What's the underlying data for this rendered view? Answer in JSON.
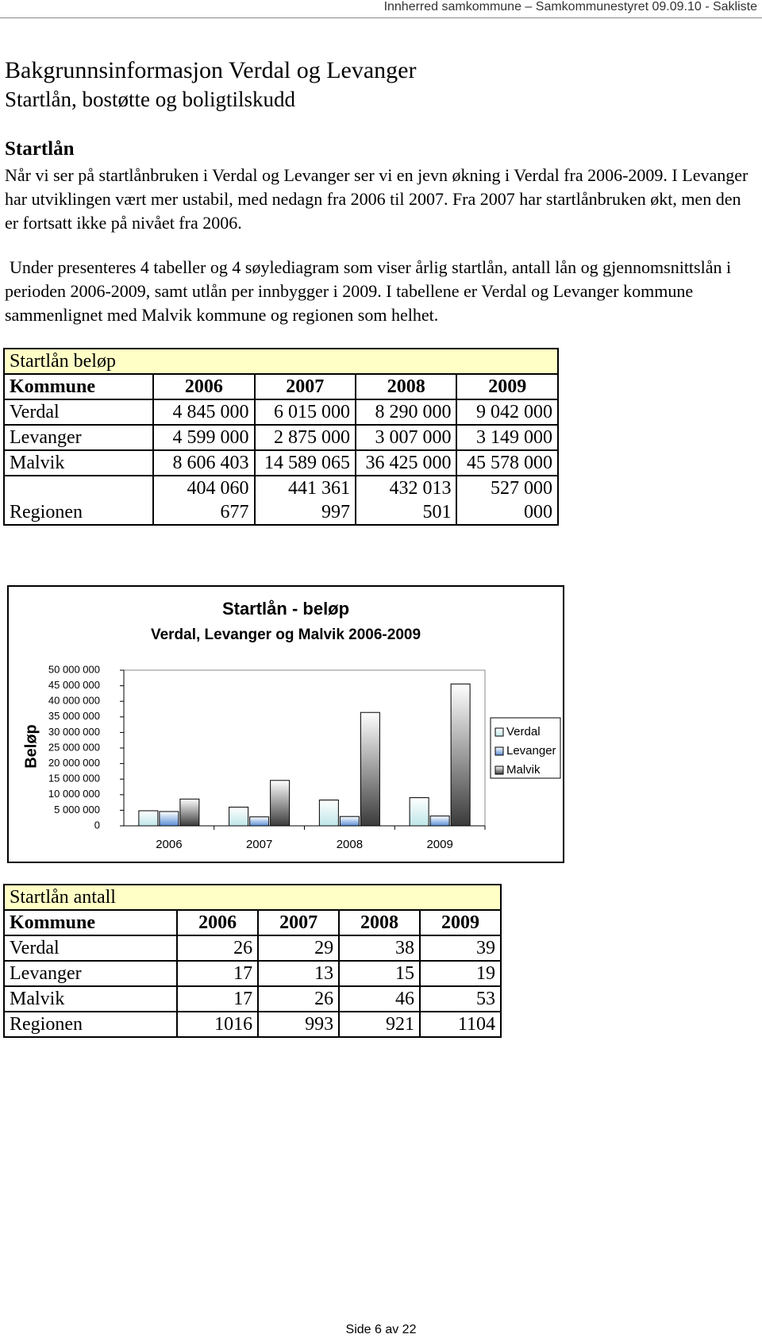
{
  "header": "Innherred samkommune – Samkommunestyret 09.09.10 - Sakliste",
  "title": "Bakgrunnsinformasjon Verdal og Levanger",
  "subtitle": "Startlån, bostøtte og boligtilskudd",
  "section": "Startlån",
  "paragraphs": [
    "Når vi ser på startlånbruken i Verdal og Levanger ser vi en jevn økning i Verdal fra 2006-2009. I Levanger har utviklingen vært mer ustabil, med nedagn fra 2006 til 2007. Fra 2007 har startlånbruken økt, men den er fortsatt ikke på nivået fra 2006.",
    "Under presenteres 4 tabeller og 4 søylediagram som viser årlig startlån, antall lån og gjennomsnittslån i perioden 2006-2009, samt utlån per innbygger i 2009. I tabellene er Verdal og Levanger kommune sammenlignet med Malvik kommune og regionen som helhet."
  ],
  "table1": {
    "caption": "Startlån beløp",
    "header": [
      "Kommune",
      "2006",
      "2007",
      "2008",
      "2009"
    ],
    "rows": [
      [
        "Verdal",
        "4 845 000",
        "6 015 000",
        "8 290 000",
        "9 042 000"
      ],
      [
        "Levanger",
        "4 599 000",
        "2 875 000",
        "3 007 000",
        "3 149 000"
      ],
      [
        "Malvik",
        "8 606 403",
        "14 589 065",
        "36 425 000",
        "45 578 000"
      ],
      [
        "Regionen",
        "404 060 677",
        "441 361 997",
        "432 013 501",
        "527 000 000"
      ]
    ]
  },
  "chart_data": {
    "type": "bar",
    "title": "Startlån - beløp",
    "subtitle": "Verdal, Levanger og Malvik 2006-2009",
    "y_label": "Beløp",
    "categories": [
      "2006",
      "2007",
      "2008",
      "2009"
    ],
    "series": [
      {
        "name": "Verdal",
        "color": "#bfe6e8",
        "values": [
          4845000,
          6015000,
          8290000,
          9042000
        ]
      },
      {
        "name": "Levanger",
        "color": "#5b8fd6",
        "values": [
          4599000,
          2875000,
          3007000,
          3149000
        ]
      },
      {
        "name": "Malvik",
        "color": "#3a3a3a",
        "values": [
          8606403,
          14589065,
          36425000,
          45578000
        ]
      }
    ],
    "ylim": [
      0,
      50000000
    ],
    "yticks": [
      0,
      {
        "value": 5000000,
        "label": "5 000 000"
      },
      {
        "value": 10000000,
        "label": "10 000 000"
      },
      {
        "value": 15000000,
        "label": "15 000 000"
      },
      {
        "value": 20000000,
        "label": "20 000 000"
      },
      {
        "value": 25000000,
        "label": "25 000 000"
      },
      {
        "value": 30000000,
        "label": "30 000 000"
      },
      {
        "value": 35000000,
        "label": "35 000 000"
      },
      {
        "value": 40000000,
        "label": "40 000 000"
      },
      {
        "value": 45000000,
        "label": "45 000 000"
      },
      {
        "value": 50000000,
        "label": "50 000 000"
      }
    ],
    "grid": false,
    "legend": "right"
  },
  "table2": {
    "caption": "Startlån antall",
    "header": [
      "Kommune",
      "2006",
      "2007",
      "2008",
      "2009"
    ],
    "rows": [
      [
        "Verdal",
        "26",
        "29",
        "38",
        "39"
      ],
      [
        "Levanger",
        "17",
        "13",
        "15",
        "19"
      ],
      [
        "Malvik",
        "17",
        "26",
        "46",
        "53"
      ],
      [
        "Regionen",
        "1016",
        "993",
        "921",
        "1104"
      ]
    ]
  },
  "footer": "Side 6 av 22"
}
